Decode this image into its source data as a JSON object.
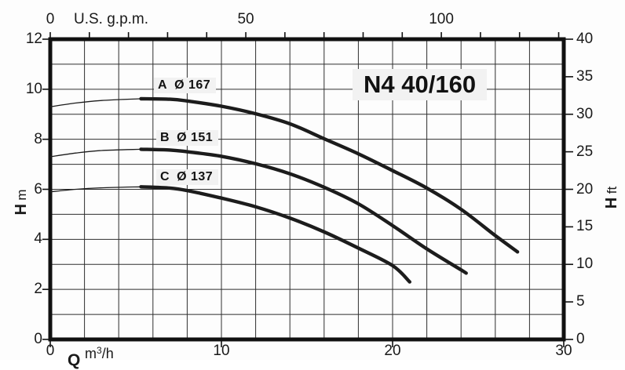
{
  "title": "N4 40/160",
  "axes": {
    "top": {
      "unit": "U.S. g.p.m.",
      "labeled_ticks": [
        0,
        50,
        100
      ]
    },
    "bottom": {
      "q_symbol": "Q",
      "unit_m": "m",
      "unit_sup": "3",
      "unit_rest": "/h",
      "labeled_ticks": [
        0,
        10,
        20,
        30
      ]
    },
    "left": {
      "unit_bold": "H",
      "unit": "m",
      "labeled_ticks": [
        12,
        10,
        8,
        6,
        4,
        2,
        0
      ]
    },
    "right": {
      "unit_bold": "H",
      "unit": "ft",
      "labeled_ticks": [
        40,
        35,
        30,
        25,
        20,
        15,
        10,
        5,
        0
      ]
    }
  },
  "chart_data": {
    "type": "line",
    "title": "N4 40/160",
    "x_axis": {
      "label": "Q m3/h",
      "range": [
        0,
        30
      ],
      "gridline_step": 2,
      "labeled_ticks": [
        0,
        10,
        20,
        30
      ]
    },
    "x_axis_top": {
      "label": "U.S. g.p.m.",
      "range": [
        0,
        131.3
      ],
      "tick_step": 10,
      "labeled_ticks": [
        0,
        50,
        100
      ]
    },
    "y_axis_left": {
      "label": "H m",
      "range": [
        0,
        12
      ],
      "gridline_step": 1,
      "labeled_ticks": [
        0,
        2,
        4,
        6,
        8,
        10,
        12
      ]
    },
    "y_axis_right": {
      "label": "H ft",
      "range": [
        0,
        40
      ],
      "tick_step": 5
    },
    "grid": true,
    "series": [
      {
        "name": "A",
        "impeller": "Ø 167",
        "thin_until_x": 5.3,
        "points": [
          [
            0,
            9.3
          ],
          [
            1.5,
            9.45
          ],
          [
            3,
            9.55
          ],
          [
            5.3,
            9.62
          ],
          [
            7,
            9.6
          ],
          [
            8,
            9.53
          ],
          [
            10,
            9.32
          ],
          [
            12,
            9.02
          ],
          [
            14,
            8.62
          ],
          [
            16,
            8.02
          ],
          [
            18,
            7.42
          ],
          [
            20,
            6.75
          ],
          [
            22,
            6.05
          ],
          [
            24,
            5.2
          ],
          [
            26,
            4.15
          ],
          [
            27.3,
            3.5
          ]
        ]
      },
      {
        "name": "B",
        "impeller": "Ø 151",
        "thin_until_x": 5.3,
        "points": [
          [
            0,
            7.3
          ],
          [
            1.5,
            7.45
          ],
          [
            3,
            7.55
          ],
          [
            5.3,
            7.6
          ],
          [
            7,
            7.57
          ],
          [
            8,
            7.5
          ],
          [
            10,
            7.32
          ],
          [
            12,
            7.02
          ],
          [
            14,
            6.62
          ],
          [
            16,
            6.08
          ],
          [
            18,
            5.42
          ],
          [
            20,
            4.55
          ],
          [
            22,
            3.62
          ],
          [
            24,
            2.78
          ],
          [
            24.3,
            2.65
          ]
        ]
      },
      {
        "name": "C",
        "impeller": "Ø 137",
        "thin_until_x": 5.3,
        "points": [
          [
            0,
            5.9
          ],
          [
            1.5,
            6.0
          ],
          [
            3,
            6.06
          ],
          [
            5.3,
            6.1
          ],
          [
            7,
            6.05
          ],
          [
            8,
            5.95
          ],
          [
            10,
            5.65
          ],
          [
            12,
            5.3
          ],
          [
            14,
            4.85
          ],
          [
            16,
            4.3
          ],
          [
            18,
            3.65
          ],
          [
            20,
            2.95
          ],
          [
            21,
            2.3
          ]
        ]
      }
    ]
  },
  "style": {
    "curve_color": "#1c1c1c",
    "grid_color": "#2e2e2e",
    "border_color": "#111111",
    "label_bg": "#f2f2f2"
  }
}
